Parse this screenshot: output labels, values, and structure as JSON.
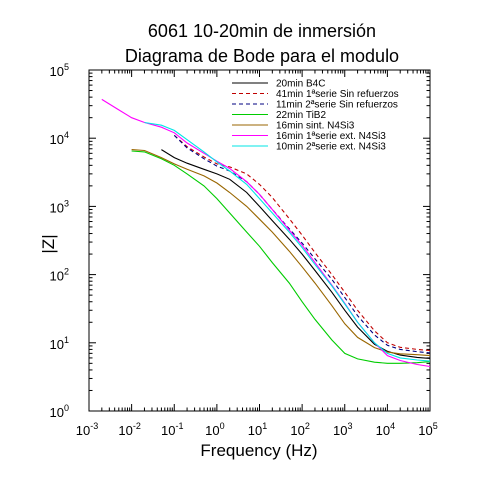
{
  "chart_data": {
    "type": "line",
    "title": "6061 10-20min de inmersión",
    "subtitle": "Diagrama de Bode para el modulo",
    "xlabel": "Frequency (Hz)",
    "ylabel": "|Z|",
    "xscale": "log",
    "yscale": "log",
    "xlim": [
      0.001,
      100000
    ],
    "ylim": [
      1,
      100000
    ],
    "x_ticks": [
      {
        "base": "10",
        "exp": "-3",
        "value": 0.001
      },
      {
        "base": "10",
        "exp": "-2",
        "value": 0.01
      },
      {
        "base": "10",
        "exp": "-1",
        "value": 0.1
      },
      {
        "base": "10",
        "exp": "0",
        "value": 1
      },
      {
        "base": "10",
        "exp": "1",
        "value": 10
      },
      {
        "base": "10",
        "exp": "2",
        "value": 100
      },
      {
        "base": "10",
        "exp": "3",
        "value": 1000
      },
      {
        "base": "10",
        "exp": "4",
        "value": 10000
      },
      {
        "base": "10",
        "exp": "5",
        "value": 100000
      }
    ],
    "y_ticks": [
      {
        "base": "10",
        "exp": "0",
        "value": 1
      },
      {
        "base": "10",
        "exp": "1",
        "value": 10
      },
      {
        "base": "10",
        "exp": "2",
        "value": 100
      },
      {
        "base": "10",
        "exp": "3",
        "value": 1000
      },
      {
        "base": "10",
        "exp": "4",
        "value": 10000
      },
      {
        "base": "10",
        "exp": "5",
        "value": 100000
      }
    ],
    "grid": false,
    "legend_position": "top-right",
    "series": [
      {
        "name": "20min B4C",
        "color": "#000000",
        "dash": "solid",
        "x": [
          0.05,
          0.1,
          0.2,
          0.5,
          1,
          2,
          5,
          10,
          20,
          50,
          100,
          200,
          500,
          1000,
          2000,
          5000,
          10000,
          20000,
          50000,
          100000
        ],
        "y": [
          6800,
          5200,
          4300,
          3500,
          3000,
          2500,
          1600,
          1000,
          620,
          330,
          200,
          115,
          55,
          30,
          17,
          9.5,
          7.5,
          6.6,
          6.1,
          5.9
        ]
      },
      {
        "name": "41min 1ªserie Sin refuerzos",
        "color": "#c00000",
        "dash": "dashed",
        "x": [
          0.1,
          0.2,
          0.5,
          1,
          2,
          5,
          10,
          20,
          50,
          100,
          200,
          500,
          1000,
          2000,
          5000,
          10000,
          20000,
          50000,
          100000
        ],
        "y": [
          11000,
          7500,
          5300,
          4200,
          3800,
          3000,
          2100,
          1350,
          660,
          380,
          210,
          100,
          55,
          30,
          15,
          10,
          8.6,
          8,
          7.7
        ]
      },
      {
        "name": "11min 2ªserie Sin refuerzos",
        "color": "#000080",
        "dash": "dashed",
        "x": [
          0.1,
          0.2,
          0.5,
          1,
          2,
          5,
          10,
          20,
          50,
          100,
          200,
          500,
          1000,
          2000,
          5000,
          10000,
          20000,
          50000,
          100000
        ],
        "y": [
          11000,
          7200,
          5000,
          3900,
          3300,
          2300,
          1500,
          900,
          470,
          290,
          170,
          85,
          46,
          25,
          13,
          9.2,
          8,
          7.4,
          7.1
        ]
      },
      {
        "name": "22min TiB2",
        "color": "#00cc00",
        "dash": "solid",
        "x": [
          0.01,
          0.02,
          0.05,
          0.1,
          0.2,
          0.5,
          1,
          2,
          5,
          10,
          20,
          50,
          100,
          200,
          500,
          1000,
          2000,
          5000,
          10000,
          20000,
          50000,
          100000
        ],
        "y": [
          6500,
          6300,
          5000,
          4000,
          3000,
          2000,
          1300,
          800,
          420,
          260,
          150,
          75,
          40,
          22,
          11,
          7,
          5.8,
          5.2,
          5,
          5,
          5.1,
          5.3
        ]
      },
      {
        "name": "16min sint. N4Si3",
        "color": "#996600",
        "dash": "solid",
        "x": [
          0.01,
          0.02,
          0.05,
          0.1,
          0.2,
          0.5,
          1,
          2,
          5,
          10,
          20,
          50,
          100,
          200,
          500,
          1000,
          2000,
          5000,
          10000,
          20000,
          50000,
          100000
        ],
        "y": [
          6800,
          6600,
          5200,
          4200,
          3500,
          2800,
          2200,
          1600,
          1000,
          650,
          420,
          220,
          130,
          75,
          35,
          19,
          12,
          8.5,
          7.3,
          6.9,
          6.7,
          6.5
        ]
      },
      {
        "name": "16min 1ªserie ext. N4Si3",
        "color": "#ff00ff",
        "dash": "solid",
        "x": [
          0.002,
          0.005,
          0.01,
          0.02,
          0.05,
          0.1,
          0.2,
          0.5,
          1,
          2,
          5,
          10,
          20,
          50,
          100,
          200,
          500,
          1000,
          2000,
          5000,
          10000,
          20000,
          50000,
          100000
        ],
        "y": [
          37000,
          26000,
          20000,
          17000,
          14500,
          12000,
          8500,
          6000,
          4600,
          3600,
          2300,
          1500,
          900,
          450,
          270,
          150,
          70,
          38,
          20,
          10,
          6.5,
          5.5,
          4.8,
          4.5
        ]
      },
      {
        "name": "10min 2ªserie ext. N4Si3",
        "color": "#00e5e5",
        "dash": "solid",
        "x": [
          0.02,
          0.05,
          0.1,
          0.2,
          0.5,
          1,
          2,
          5,
          10,
          20,
          50,
          100,
          200,
          500,
          1000,
          2000,
          5000,
          10000,
          20000,
          50000,
          100000
        ],
        "y": [
          17000,
          15500,
          13000,
          9500,
          6300,
          4500,
          3300,
          2100,
          1300,
          800,
          420,
          250,
          140,
          68,
          37,
          20,
          10,
          7,
          6,
          5.6,
          5.4
        ]
      }
    ]
  }
}
